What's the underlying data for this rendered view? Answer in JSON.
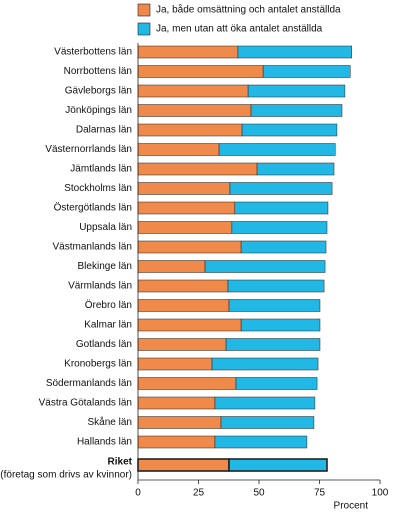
{
  "chart_data": {
    "type": "stacked-barh",
    "categories": [
      "Västerbottens län",
      "Norrbottens län",
      "Gävleborgs län",
      "Jönköpings län",
      "Dalarnas län",
      "Västernorrlands län",
      "Jämtlands län",
      "Stockholms län",
      "Östergötlands län",
      "Uppsala län",
      "Västmanlands län",
      "Blekinge län",
      "Värmlands län",
      "Örebro län",
      "Kalmar län",
      "Gotlands län",
      "Kronobergs län",
      "Södermanlands län",
      "Västra Götalands län",
      "Skåne län",
      "Hallands län",
      "Riket"
    ],
    "total_note": "(företag som drivs av kvinnor)",
    "series": [
      {
        "name": "Ja, både omsättning och antalet anställda",
        "color": "#f08a4b",
        "values": [
          41.3,
          51.7,
          45.5,
          46.7,
          43,
          33.5,
          49.2,
          38,
          40,
          38.8,
          42.6,
          27.7,
          37.2,
          37.6,
          42.6,
          36.4,
          30.6,
          40.5,
          31.8,
          34.3,
          31.8,
          37.6
        ]
      },
      {
        "name": "Ja, men utan att öka antalet anställda",
        "color": "#22b8e6",
        "values": [
          47,
          36,
          40,
          37.6,
          39.2,
          48,
          31.8,
          42.2,
          38.5,
          39.3,
          35.1,
          49.6,
          39.7,
          37.6,
          32.6,
          38.8,
          43.8,
          33.5,
          41.3,
          38.4,
          38,
          40.5
        ]
      }
    ],
    "xlim": [
      0,
      100
    ],
    "xticks": [
      0,
      25,
      50,
      75,
      100
    ],
    "xlabel": "Procent",
    "highlight_last": true
  }
}
